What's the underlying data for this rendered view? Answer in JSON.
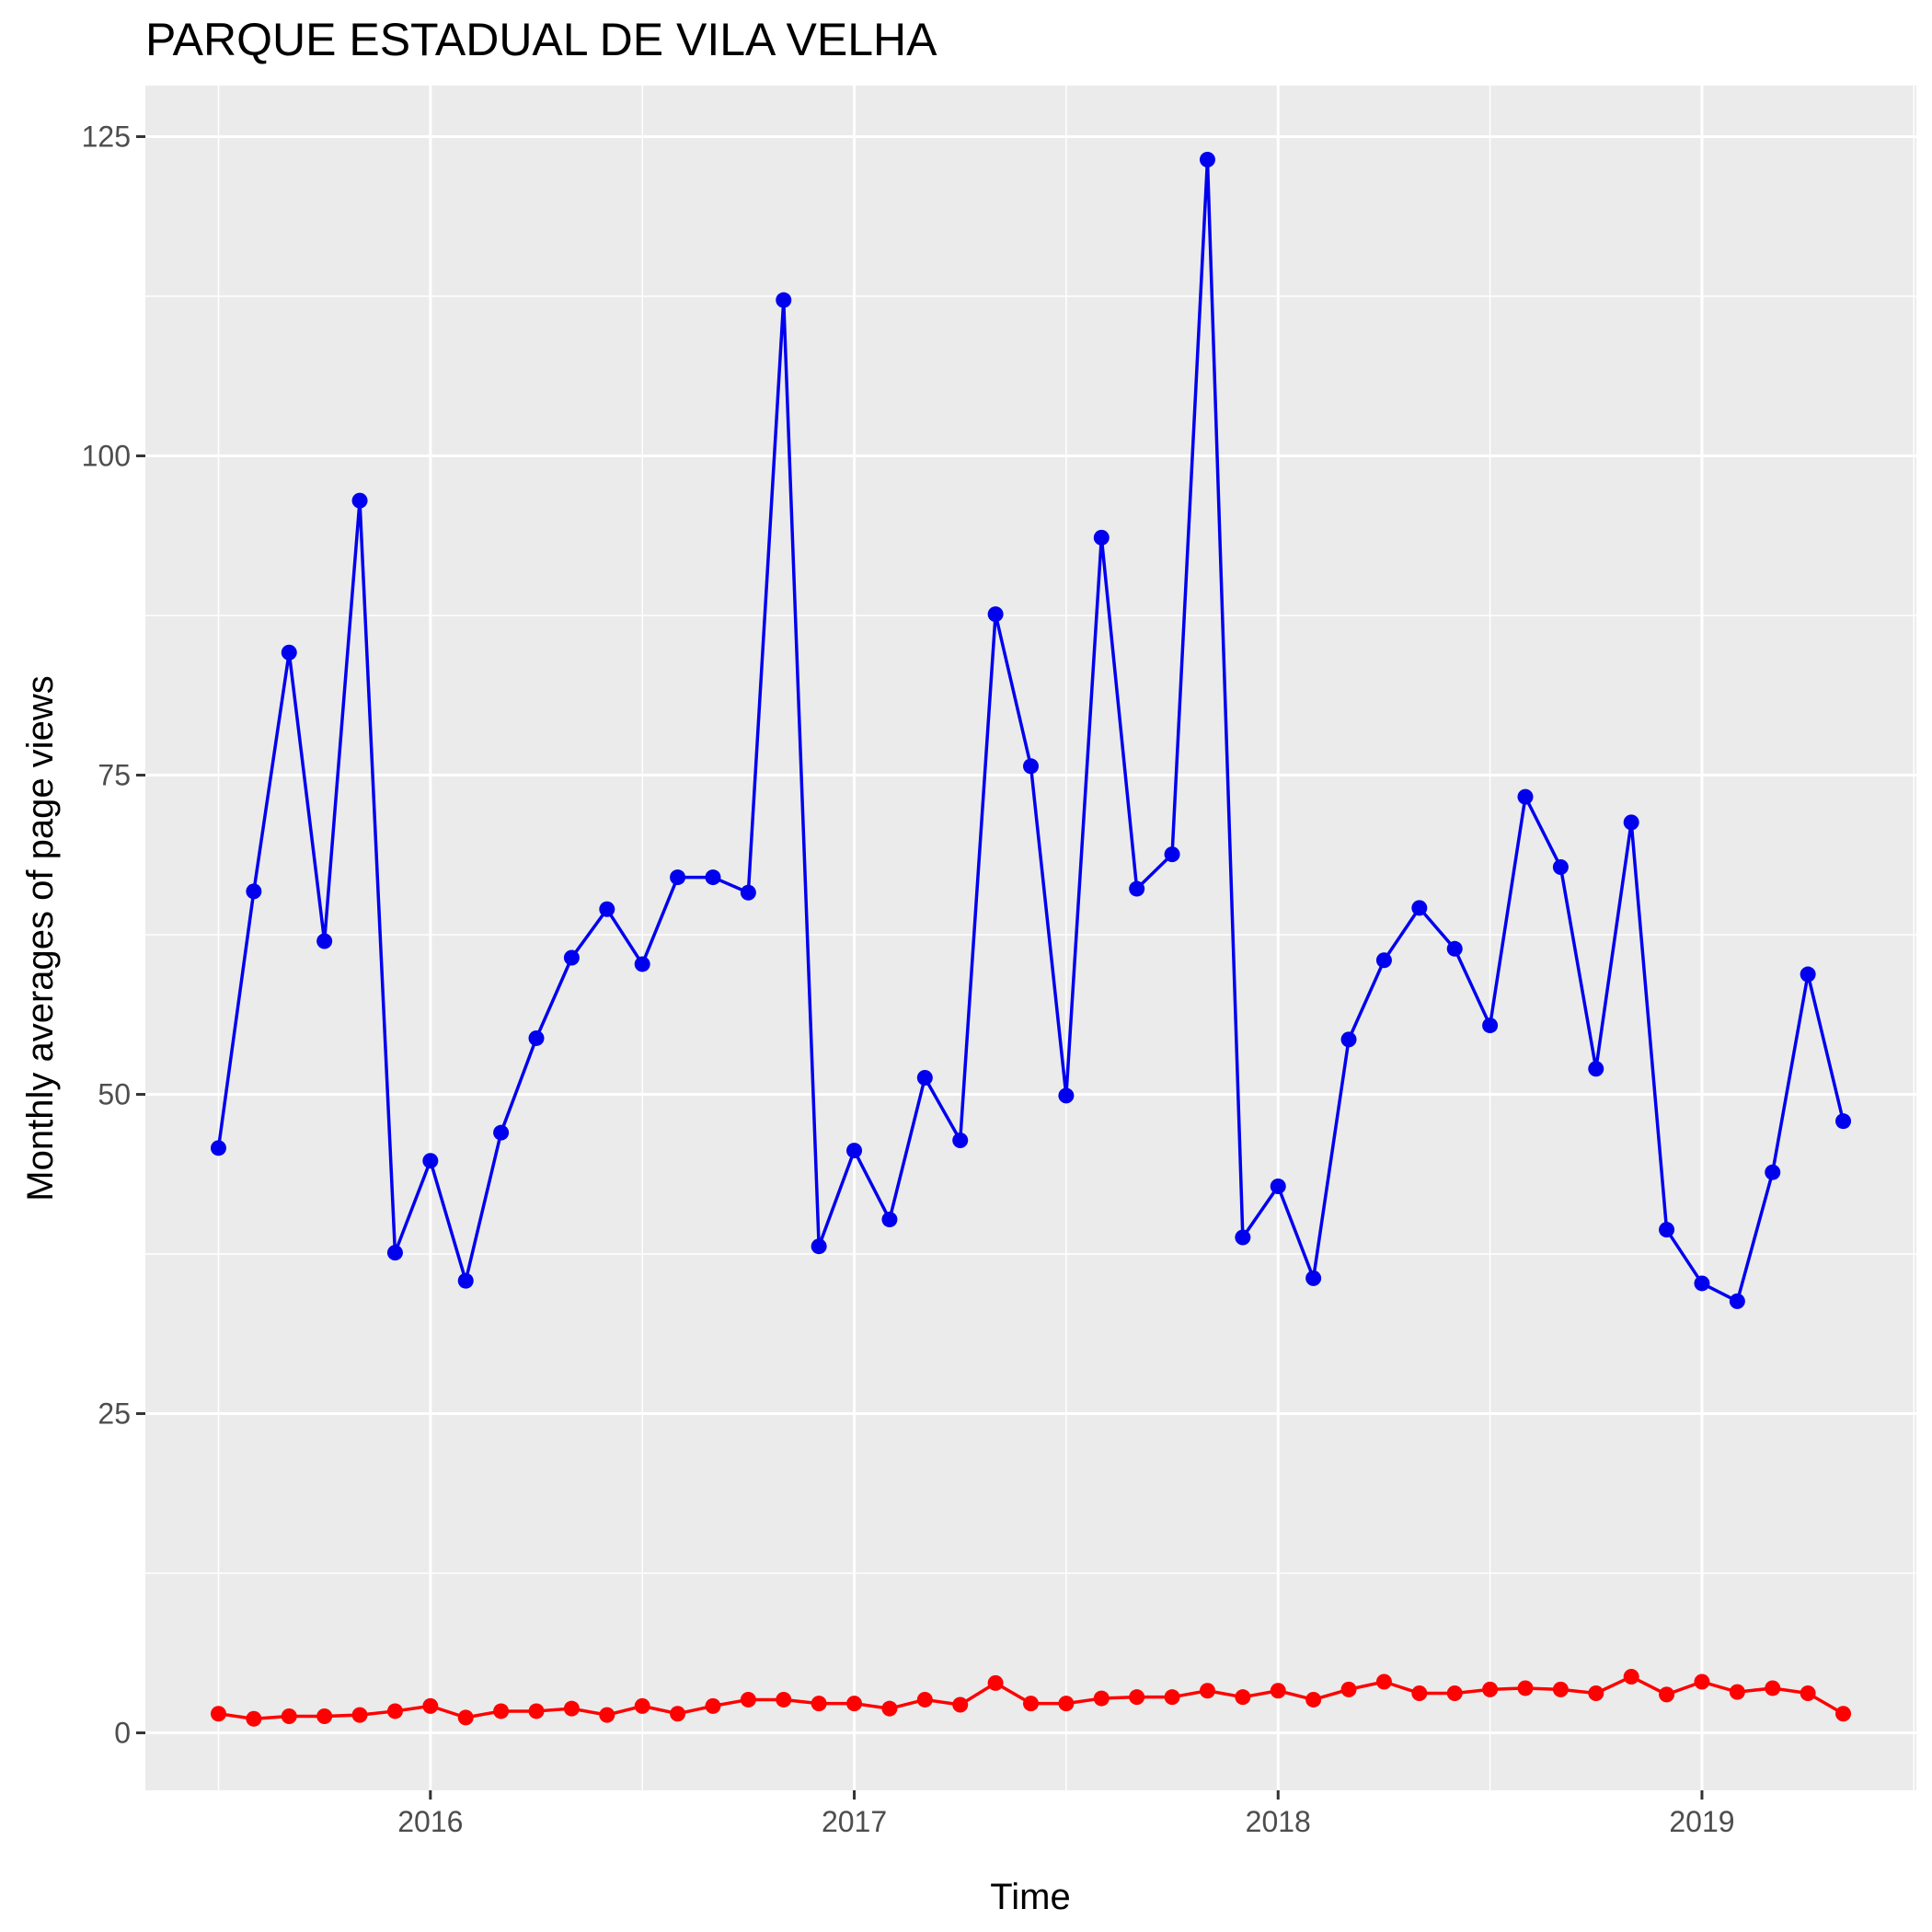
{
  "chart_data": {
    "type": "line",
    "title": "PARQUE ESTADUAL DE VILA VELHA",
    "xlabel": "Time",
    "ylabel": "Monthly averages of page views",
    "x": [
      "2015-07",
      "2015-08",
      "2015-09",
      "2015-10",
      "2015-11",
      "2015-12",
      "2016-01",
      "2016-02",
      "2016-03",
      "2016-04",
      "2016-05",
      "2016-06",
      "2016-07",
      "2016-08",
      "2016-09",
      "2016-10",
      "2016-11",
      "2016-12",
      "2017-01",
      "2017-02",
      "2017-03",
      "2017-04",
      "2017-05",
      "2017-06",
      "2017-07",
      "2017-08",
      "2017-09",
      "2017-10",
      "2017-11",
      "2017-12",
      "2018-01",
      "2018-02",
      "2018-03",
      "2018-04",
      "2018-05",
      "2018-06",
      "2018-07",
      "2018-08",
      "2018-09",
      "2018-10",
      "2018-11",
      "2018-12",
      "2019-01",
      "2019-02",
      "2019-03",
      "2019-04",
      "2019-05"
    ],
    "x_ticks": [
      "2016",
      "2017",
      "2018",
      "2019"
    ],
    "y_ticks": [
      0,
      25,
      50,
      75,
      100,
      125
    ],
    "ylim": [
      -4.5,
      129
    ],
    "grid": true,
    "series": [
      {
        "color": "#0000ee",
        "values": [
          45.8,
          65.9,
          84.6,
          62.0,
          96.5,
          37.6,
          44.8,
          35.4,
          47.0,
          54.4,
          60.7,
          64.5,
          60.2,
          67.0,
          67.0,
          65.8,
          112.2,
          38.1,
          45.6,
          40.2,
          51.3,
          46.4,
          87.6,
          75.7,
          49.9,
          93.6,
          66.1,
          68.8,
          123.2,
          38.8,
          42.8,
          35.6,
          54.3,
          60.5,
          64.6,
          61.4,
          55.4,
          73.3,
          67.8,
          52.0,
          71.3,
          39.4,
          35.2,
          33.8,
          43.9,
          59.4,
          47.9
        ]
      },
      {
        "color": "#ff0000",
        "values": [
          1.5,
          1.1,
          1.3,
          1.3,
          1.4,
          1.7,
          2.1,
          1.2,
          1.7,
          1.7,
          1.9,
          1.4,
          2.1,
          1.5,
          2.1,
          2.6,
          2.6,
          2.3,
          2.3,
          1.9,
          2.6,
          2.2,
          3.9,
          2.3,
          2.3,
          2.7,
          2.8,
          2.8,
          3.3,
          2.8,
          3.3,
          2.6,
          3.4,
          4.0,
          3.1,
          3.1,
          3.4,
          3.5,
          3.4,
          3.1,
          4.4,
          3.0,
          4.0,
          3.2,
          3.5,
          3.1,
          1.5
        ]
      }
    ]
  }
}
